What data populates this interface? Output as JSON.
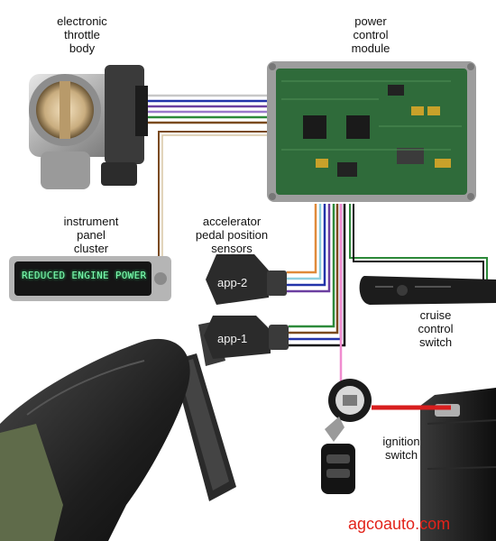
{
  "labels": {
    "throttle": [
      "electronic",
      "throttle",
      "body"
    ],
    "pcm": [
      "power",
      "control",
      "module"
    ],
    "cluster": [
      "instrument",
      "panel",
      "cluster"
    ],
    "app_sensors": [
      "accelerator",
      "pedal position",
      "sensors"
    ],
    "cruise": [
      "cruise",
      "control",
      "switch"
    ],
    "ignition": [
      "ignition",
      "switch"
    ]
  },
  "sensor_tags": {
    "app2": "app-2",
    "app1": "app-1"
  },
  "display_text": "REDUCED ENGINE POWER",
  "brand": "agcoauto.com",
  "colors": {
    "brand": "#e2231a",
    "pcm_board": "#2f6b3a",
    "wire_purple": "#6b3fa0",
    "wire_blue": "#2233aa",
    "wire_green": "#2d8a3a",
    "wire_brown": "#7a4a1e",
    "wire_orange": "#e08a3a",
    "wire_pink": "#f08ccf",
    "wire_red": "#d81e1e"
  }
}
